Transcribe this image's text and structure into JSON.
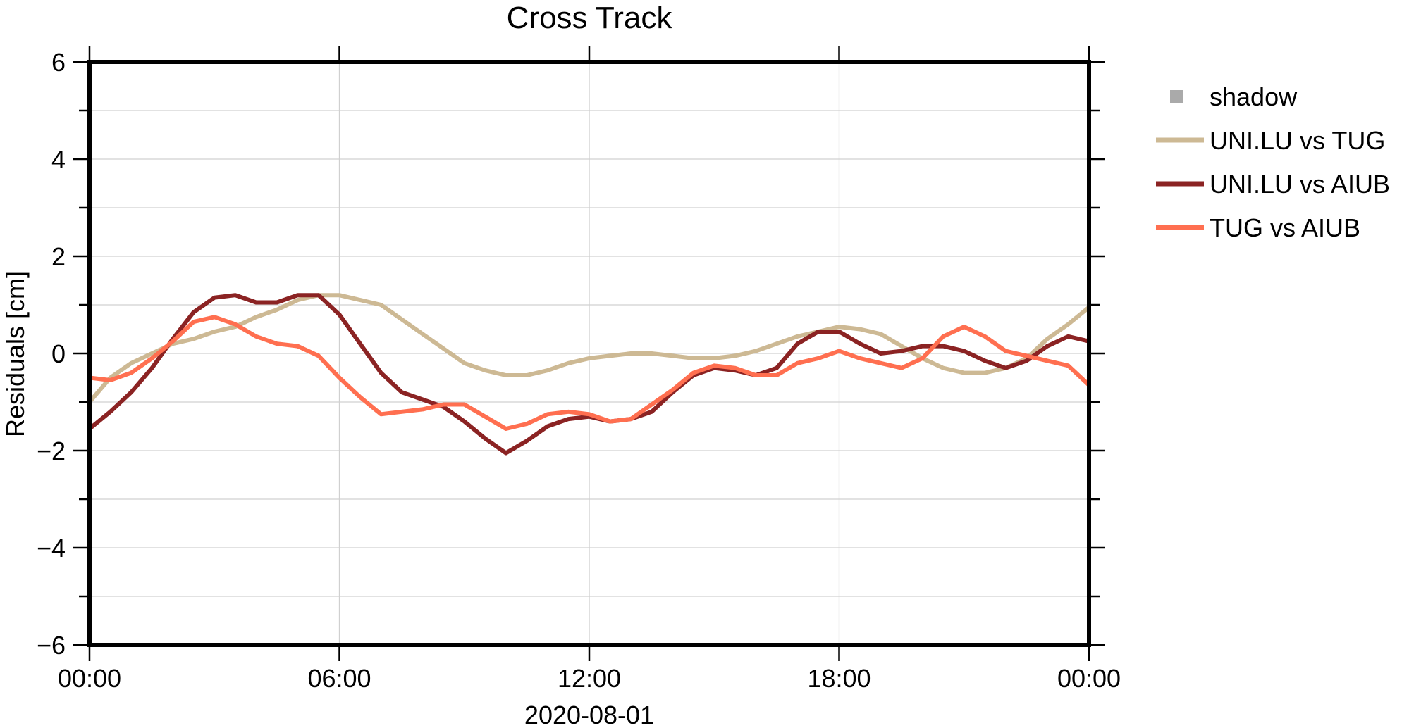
{
  "chart_data": {
    "type": "line",
    "title": "Cross Track",
    "ylabel": "Residuals [cm]",
    "xlabel": "2020-08-01",
    "xlim": [
      0,
      24
    ],
    "ylim": [
      -6,
      6
    ],
    "x_ticks": [
      {
        "value": 0,
        "label": "00:00"
      },
      {
        "value": 6,
        "label": "06:00"
      },
      {
        "value": 12,
        "label": "12:00"
      },
      {
        "value": 18,
        "label": "18:00"
      },
      {
        "value": 24,
        "label": "00:00"
      }
    ],
    "y_ticks": [
      {
        "value": -6,
        "label": "−6"
      },
      {
        "value": -4,
        "label": "−4"
      },
      {
        "value": -2,
        "label": "−2"
      },
      {
        "value": 0,
        "label": "0"
      },
      {
        "value": 2,
        "label": "2"
      },
      {
        "value": 4,
        "label": "4"
      },
      {
        "value": 6,
        "label": "6"
      }
    ],
    "grid": true,
    "legend_position": "right",
    "legend": [
      {
        "name": "shadow",
        "color": "#aaaaaa",
        "marker": "square"
      },
      {
        "name": "UNI.LU vs TUG",
        "color": "#cdb994",
        "marker": "line"
      },
      {
        "name": "UNI.LU vs AIUB",
        "color": "#8b2323",
        "marker": "line"
      },
      {
        "name": "TUG vs AIUB",
        "color": "#ff6f50",
        "marker": "line"
      }
    ],
    "series": [
      {
        "name": "UNI.LU vs TUG",
        "color": "#cdb994",
        "x": [
          0,
          0.5,
          1,
          1.5,
          2,
          2.5,
          3,
          3.5,
          4,
          4.5,
          5,
          5.5,
          6,
          6.5,
          7,
          7.5,
          8,
          8.5,
          9,
          9.5,
          10,
          10.5,
          11,
          11.5,
          12,
          12.5,
          13,
          13.5,
          14,
          14.5,
          15,
          15.5,
          16,
          16.5,
          17,
          17.5,
          18,
          18.5,
          19,
          19.5,
          20,
          20.5,
          21,
          21.5,
          22,
          22.5,
          23,
          23.5,
          24
        ],
        "values": [
          -1.0,
          -0.5,
          -0.2,
          0.0,
          0.2,
          0.3,
          0.45,
          0.55,
          0.75,
          0.9,
          1.1,
          1.2,
          1.2,
          1.1,
          1.0,
          0.7,
          0.4,
          0.1,
          -0.2,
          -0.35,
          -0.45,
          -0.45,
          -0.35,
          -0.2,
          -0.1,
          -0.05,
          0.0,
          0.0,
          -0.05,
          -0.1,
          -0.1,
          -0.05,
          0.05,
          0.2,
          0.35,
          0.45,
          0.55,
          0.5,
          0.4,
          0.15,
          -0.1,
          -0.3,
          -0.4,
          -0.4,
          -0.3,
          -0.1,
          0.3,
          0.6,
          0.95
        ]
      },
      {
        "name": "UNI.LU vs AIUB",
        "color": "#8b2323",
        "x": [
          0,
          0.5,
          1,
          1.5,
          2,
          2.5,
          3,
          3.5,
          4,
          4.5,
          5,
          5.5,
          6,
          6.5,
          7,
          7.5,
          8,
          8.5,
          9,
          9.5,
          10,
          10.5,
          11,
          11.5,
          12,
          12.5,
          13,
          13.5,
          14,
          14.5,
          15,
          15.5,
          16,
          16.5,
          17,
          17.5,
          18,
          18.5,
          19,
          19.5,
          20,
          20.5,
          21,
          21.5,
          22,
          22.5,
          23,
          23.5,
          24
        ],
        "values": [
          -1.55,
          -1.2,
          -0.8,
          -0.3,
          0.3,
          0.85,
          1.15,
          1.2,
          1.05,
          1.05,
          1.2,
          1.2,
          0.8,
          0.2,
          -0.4,
          -0.8,
          -0.95,
          -1.1,
          -1.4,
          -1.75,
          -2.05,
          -1.8,
          -1.5,
          -1.35,
          -1.3,
          -1.4,
          -1.35,
          -1.2,
          -0.8,
          -0.45,
          -0.3,
          -0.35,
          -0.45,
          -0.3,
          0.2,
          0.45,
          0.45,
          0.2,
          0.0,
          0.05,
          0.15,
          0.15,
          0.05,
          -0.15,
          -0.3,
          -0.15,
          0.15,
          0.35,
          0.25
        ]
      },
      {
        "name": "TUG vs AIUB",
        "color": "#ff6f50",
        "x": [
          0,
          0.5,
          1,
          1.5,
          2,
          2.5,
          3,
          3.5,
          4,
          4.5,
          5,
          5.5,
          6,
          6.5,
          7,
          7.5,
          8,
          8.5,
          9,
          9.5,
          10,
          10.5,
          11,
          11.5,
          12,
          12.5,
          13,
          13.5,
          14,
          14.5,
          15,
          15.5,
          16,
          16.5,
          17,
          17.5,
          18,
          18.5,
          19,
          19.5,
          20,
          20.5,
          21,
          21.5,
          22,
          22.5,
          23,
          23.5,
          24
        ],
        "values": [
          -0.5,
          -0.55,
          -0.4,
          -0.1,
          0.25,
          0.65,
          0.75,
          0.6,
          0.35,
          0.2,
          0.15,
          -0.05,
          -0.5,
          -0.9,
          -1.25,
          -1.2,
          -1.15,
          -1.05,
          -1.05,
          -1.3,
          -1.55,
          -1.45,
          -1.25,
          -1.2,
          -1.25,
          -1.4,
          -1.35,
          -1.05,
          -0.75,
          -0.4,
          -0.25,
          -0.3,
          -0.45,
          -0.45,
          -0.2,
          -0.1,
          0.05,
          -0.1,
          -0.2,
          -0.3,
          -0.1,
          0.35,
          0.55,
          0.35,
          0.05,
          -0.05,
          -0.15,
          -0.25,
          -0.65
        ]
      }
    ]
  }
}
